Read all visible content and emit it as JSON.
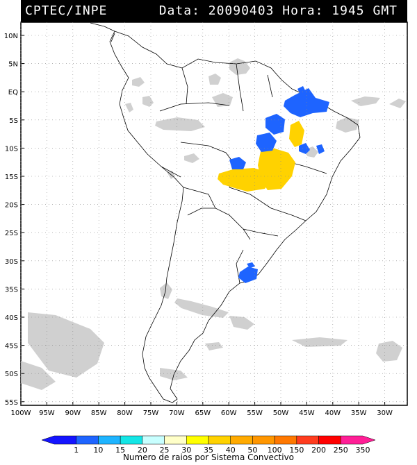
{
  "header": {
    "source": "CPTEC/INPE",
    "datetime": "Data: 20090403 Hora: 1945 GMT"
  },
  "axes": {
    "lat_labels": [
      "10N",
      "5N",
      "EQ",
      "5S",
      "10S",
      "15S",
      "20S",
      "25S",
      "30S",
      "35S",
      "40S",
      "45S",
      "50S",
      "55S"
    ],
    "lon_labels": [
      "100W",
      "95W",
      "90W",
      "85W",
      "80W",
      "75W",
      "70W",
      "65W",
      "60W",
      "55W",
      "50W",
      "45W",
      "40W",
      "35W",
      "30W"
    ]
  },
  "colorbar": {
    "ticks": [
      "1",
      "10",
      "15",
      "20",
      "25",
      "30",
      "35",
      "40",
      "50",
      "100",
      "150",
      "200",
      "250",
      "350"
    ],
    "colors": [
      "#1414ff",
      "#1e64ff",
      "#1eb4ff",
      "#14e6e6",
      "#c8ffff",
      "#ffffc8",
      "#ffff00",
      "#ffd200",
      "#ffaa00",
      "#ff9600",
      "#ff7800",
      "#ff3c1e",
      "#ff0000",
      "#ff1e96"
    ],
    "caption": "Numero de raios por Sistema Convectivo"
  },
  "colors": {
    "cloud": "#c8c8c8",
    "storm_blue": "#1e64ff",
    "storm_yellow": "#ffd200",
    "storm_amber": "#ffcc00"
  }
}
